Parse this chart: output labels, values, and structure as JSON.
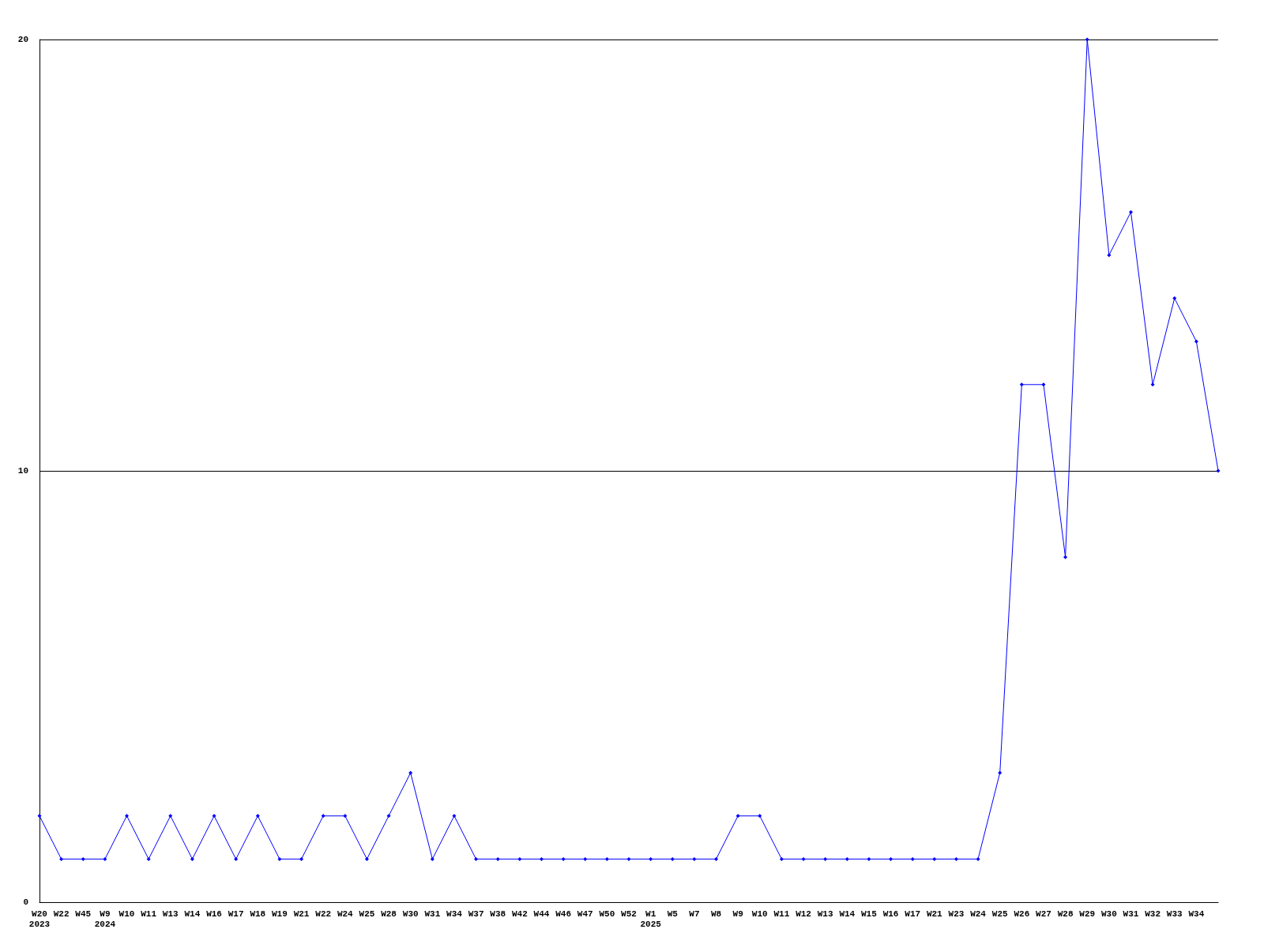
{
  "chart_data": {
    "type": "line",
    "categories": [
      "W20\n2023",
      "W22",
      "W45",
      "W9\n2024",
      "W10",
      "W11",
      "W13",
      "W14",
      "W16",
      "W17",
      "W18",
      "W19",
      "W21",
      "W22",
      "W24",
      "W25",
      "W28",
      "W30",
      "W31",
      "W34",
      "W37",
      "W38",
      "W42",
      "W44",
      "W46",
      "W47",
      "W50",
      "W52",
      "W1\n2025",
      "W5",
      "W7",
      "W8",
      "W9",
      "W10",
      "W11",
      "W12",
      "W13",
      "W14",
      "W15",
      "W16",
      "W17",
      "W21",
      "W23",
      "W24",
      "W25",
      "W26",
      "W27",
      "W28",
      "W29",
      "W30",
      "W31",
      "W32",
      "W33",
      "W34",
      null
    ],
    "series": [
      {
        "color": "#0000ff",
        "values": [
          2,
          1,
          1,
          1,
          2,
          1,
          2,
          1,
          2,
          1,
          2,
          1,
          1,
          2,
          2,
          1,
          2,
          3,
          1,
          2,
          1,
          1,
          1,
          1,
          1,
          1,
          1,
          1,
          1,
          1,
          1,
          1,
          2,
          2,
          1,
          1,
          1,
          1,
          1,
          1,
          1,
          1,
          1,
          1,
          3,
          12,
          12,
          8,
          20,
          15,
          16,
          12,
          14,
          13,
          10
        ]
      }
    ],
    "ylim": [
      0,
      20
    ],
    "yticks": [
      0,
      10,
      20
    ],
    "grid": "y",
    "marker": "diamond",
    "line_style": "solid"
  }
}
